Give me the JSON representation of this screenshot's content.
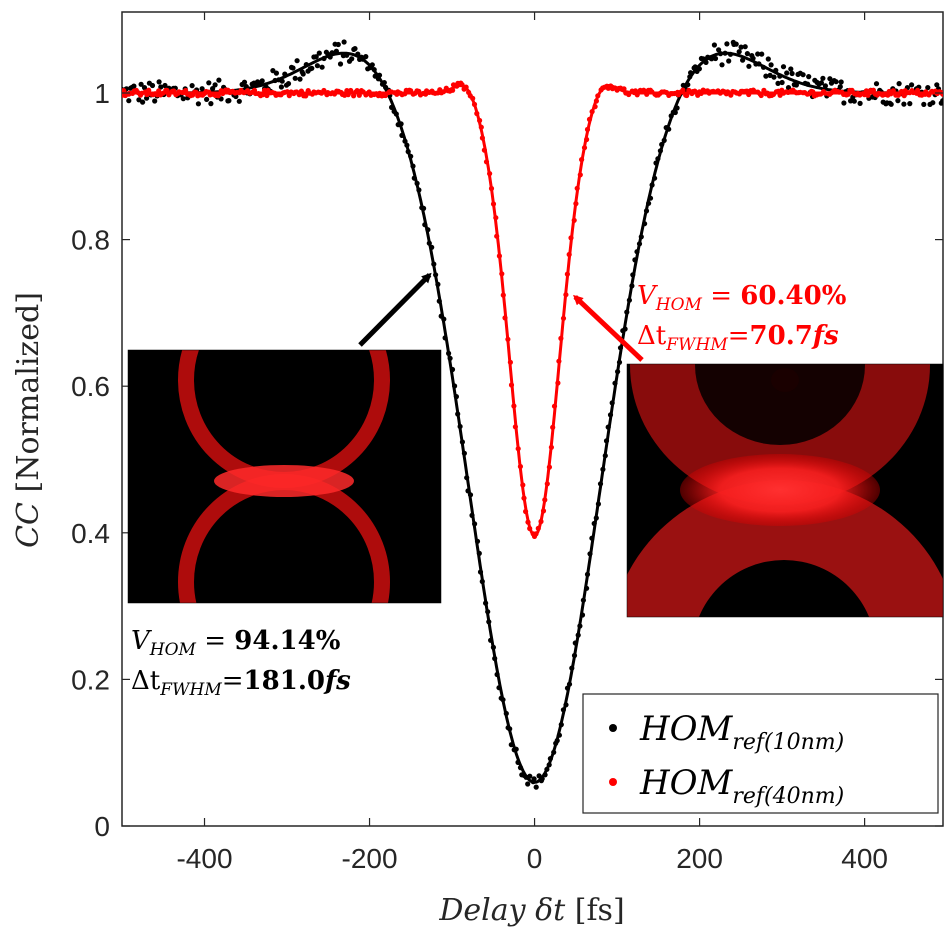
{
  "chart_data": {
    "type": "scatter",
    "xlabel": "Delay δt [fs]",
    "xlabel_parts": {
      "main": "Delay δt ",
      "unit": "[fs]"
    },
    "ylabel": "CC [Normalized]",
    "ylabel_parts": {
      "main": "CC ",
      "unit": "[Normalized]"
    },
    "xlim": [
      -500,
      495
    ],
    "ylim": [
      0,
      1.1
    ],
    "xticks": [
      -400,
      -200,
      0,
      200,
      400
    ],
    "xtick_labels": [
      "-400",
      "-200",
      "0",
      "200",
      "400"
    ],
    "yticks": [
      0,
      0.2,
      0.4,
      0.6,
      0.8,
      1
    ],
    "ytick_labels": [
      "0",
      "0.2",
      "0.4",
      "0.6",
      "0.8",
      "1"
    ],
    "legend_position": "bottom-right",
    "series": [
      {
        "name": "HOM_ref(10nm)",
        "legend_main": "HOM",
        "legend_sub": "ref(10nm)",
        "color": "#000000",
        "model": {
          "visibility": 0.9414,
          "fwhm_fs": 181.0,
          "bump_height": 0.07,
          "bump_center_fs": 205,
          "bump_width_fs": 65,
          "baseline": 1.0
        },
        "marker": "dot+line"
      },
      {
        "name": "HOM_ref(40nm)",
        "legend_main": "HOM",
        "legend_sub": "ref(40nm)",
        "color": "#ff0000",
        "model": {
          "visibility": 0.604,
          "fwhm_fs": 70.7,
          "bump_height": 0.02,
          "bump_center_fs": 82,
          "bump_width_fs": 14,
          "baseline": 1.0
        },
        "marker": "dot+line"
      }
    ],
    "annotations": [
      {
        "id": "black",
        "color": "#000000",
        "v_label": "V",
        "v_sub": "HOM",
        "v_eq": " = ",
        "v_value": "94.14%",
        "dt_label": "Δt",
        "dt_sub": "FWHM",
        "dt_eq": "=",
        "dt_value": "181.0",
        "dt_unit": "fs",
        "arrow_target_x": -120,
        "arrow_target_y": 0.76
      },
      {
        "id": "red",
        "color": "#ff0000",
        "v_label": "V",
        "v_sub": "HOM",
        "v_eq": " = ",
        "v_value": "60.40%",
        "dt_label": "Δt",
        "dt_sub": "FWHM",
        "dt_eq": "=",
        "dt_value": "70.7",
        "dt_unit": "fs",
        "arrow_target_x": 42,
        "arrow_target_y": 0.73
      }
    ]
  }
}
